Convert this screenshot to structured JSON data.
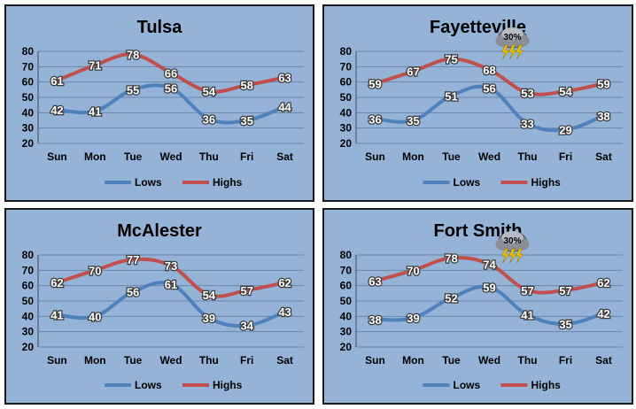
{
  "colors": {
    "lows": "#4f81bd",
    "highs": "#c0504d",
    "panel": "#95b3d7",
    "grid": "#6b86aa",
    "axis": "#3c4e63"
  },
  "chart_data": [
    {
      "type": "line",
      "title": "Tulsa",
      "categories": [
        "Sun",
        "Mon",
        "Tue",
        "Wed",
        "Thu",
        "Fri",
        "Sat"
      ],
      "ylim": [
        20,
        80
      ],
      "yticks": [
        20,
        30,
        40,
        50,
        60,
        70,
        80
      ],
      "series": [
        {
          "name": "Lows",
          "values": [
            42,
            41,
            55,
            56,
            36,
            35,
            44
          ]
        },
        {
          "name": "Highs",
          "values": [
            61,
            71,
            78,
            66,
            54,
            58,
            63
          ]
        }
      ],
      "legend": "bottom",
      "badge": null
    },
    {
      "type": "line",
      "title": "Fayetteville",
      "categories": [
        "Sun",
        "Mon",
        "Tue",
        "Wed",
        "Thu",
        "Fri",
        "Sat"
      ],
      "ylim": [
        20,
        80
      ],
      "yticks": [
        20,
        30,
        40,
        50,
        60,
        70,
        80
      ],
      "series": [
        {
          "name": "Lows",
          "values": [
            36,
            35,
            51,
            56,
            33,
            29,
            38
          ]
        },
        {
          "name": "Highs",
          "values": [
            59,
            67,
            75,
            68,
            53,
            54,
            59
          ]
        }
      ],
      "legend": "bottom",
      "badge": {
        "text": "30%",
        "icon": "thunderstorm-icon",
        "day": "Wed"
      }
    },
    {
      "type": "line",
      "title": "McAlester",
      "categories": [
        "Sun",
        "Mon",
        "Tue",
        "Wed",
        "Thu",
        "Fri",
        "Sat"
      ],
      "ylim": [
        20,
        80
      ],
      "yticks": [
        20,
        30,
        40,
        50,
        60,
        70,
        80
      ],
      "series": [
        {
          "name": "Lows",
          "values": [
            41,
            40,
            56,
            61,
            39,
            34,
            43
          ]
        },
        {
          "name": "Highs",
          "values": [
            62,
            70,
            77,
            73,
            54,
            57,
            62
          ]
        }
      ],
      "legend": "bottom",
      "badge": null
    },
    {
      "type": "line",
      "title": "Fort Smith",
      "categories": [
        "Sun",
        "Mon",
        "Tue",
        "Wed",
        "Thu",
        "Fri",
        "Sat"
      ],
      "ylim": [
        20,
        80
      ],
      "yticks": [
        20,
        30,
        40,
        50,
        60,
        70,
        80
      ],
      "series": [
        {
          "name": "Lows",
          "values": [
            38,
            39,
            52,
            59,
            41,
            35,
            42
          ]
        },
        {
          "name": "Highs",
          "values": [
            63,
            70,
            78,
            74,
            57,
            57,
            62
          ]
        }
      ],
      "legend": "bottom",
      "badge": {
        "text": "30%",
        "icon": "thunderstorm-icon",
        "day": "Wed"
      }
    }
  ]
}
